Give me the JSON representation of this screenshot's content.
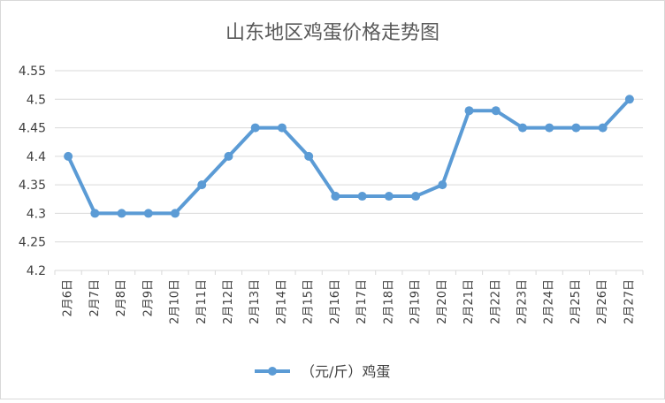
{
  "chart_data": {
    "type": "line",
    "title": "山东地区鸡蛋价格走势图",
    "xlabel": "",
    "ylabel": "",
    "categories": [
      "2月6日",
      "2月7日",
      "2月8日",
      "2月9日",
      "2月10日",
      "2月11日",
      "2月12日",
      "2月13日",
      "2月14日",
      "2月15日",
      "2月16日",
      "2月17日",
      "2月18日",
      "2月19日",
      "2月20日",
      "2月21日",
      "2月22日",
      "2月23日",
      "2月24日",
      "2月25日",
      "2月26日",
      "2月27日"
    ],
    "series": [
      {
        "name": "（元/斤）鸡蛋",
        "values": [
          4.4,
          4.3,
          4.3,
          4.3,
          4.3,
          4.35,
          4.4,
          4.45,
          4.45,
          4.4,
          4.33,
          4.33,
          4.33,
          4.33,
          4.35,
          4.48,
          4.48,
          4.45,
          4.45,
          4.45,
          4.45,
          4.5
        ],
        "color": "#5b9bd5"
      }
    ],
    "ylim": [
      4.2,
      4.55
    ],
    "yticks": [
      "4.2",
      "4.25",
      "4.3",
      "4.35",
      "4.4",
      "4.45",
      "4.5",
      "4.55"
    ],
    "grid": true,
    "legend_position": "bottom"
  },
  "colors": {
    "line": "#5b9bd5",
    "grid": "#d9d9d9",
    "text": "#404040",
    "title": "#595959"
  }
}
